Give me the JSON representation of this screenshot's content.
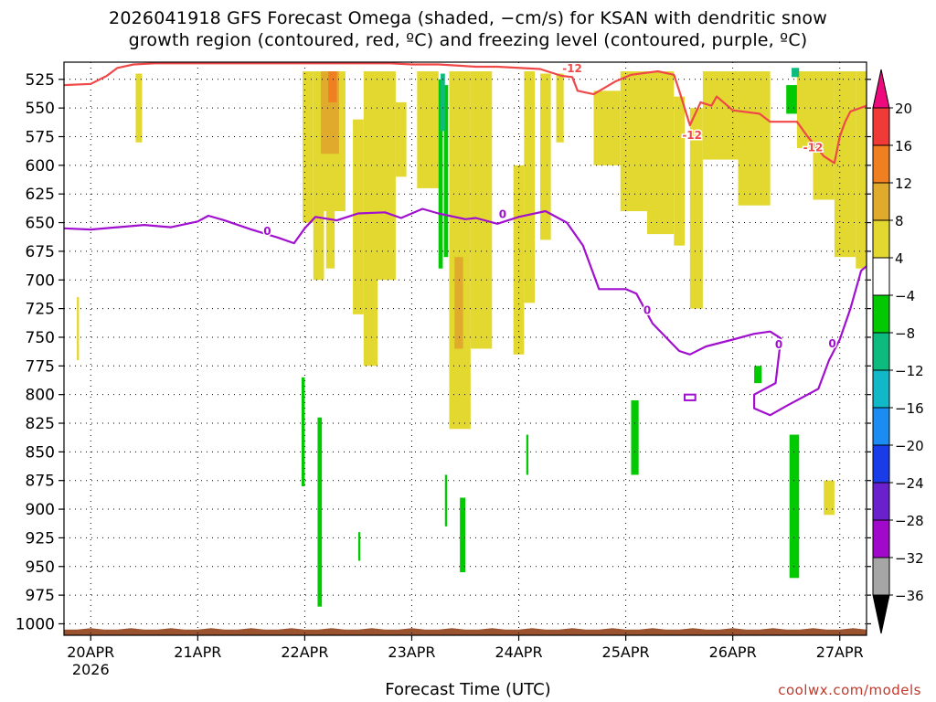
{
  "chart_data": {
    "type": "heatmap",
    "title_line1": "2026041918 GFS Forecast Omega (shaded, −cm/s) for KSAN with dendritic snow",
    "title_line2": "growth region (contoured, red, ºC) and freezing level (contoured, purple, ºC)",
    "xlabel": "Forecast Time (UTC)",
    "credit": "coolwx.com/models",
    "x_ticks": [
      "20APR",
      "21APR",
      "22APR",
      "23APR",
      "24APR",
      "25APR",
      "26APR",
      "27APR"
    ],
    "x_year_label": "2026",
    "x_range_days": [
      -0.25,
      7.25
    ],
    "y_ticks": [
      525,
      550,
      575,
      600,
      625,
      650,
      675,
      700,
      725,
      750,
      775,
      800,
      825,
      850,
      875,
      900,
      925,
      950,
      975,
      1000
    ],
    "y_range_hpa": [
      510,
      1010
    ],
    "y_axis": "pressure (hPa), inverted",
    "grid": "dotted",
    "colorbar_ticks": [
      20,
      16,
      12,
      8,
      4,
      -4,
      -8,
      -12,
      -16,
      -20,
      -24,
      -28,
      -32,
      -36
    ],
    "colorbar_colors": [
      "#ec0a7c",
      "#f03a38",
      "#ef7f20",
      "#e0aa2c",
      "#e3d830",
      "#ffffff",
      "#03c903",
      "#0cbb7d",
      "#10b8c8",
      "#1a8cf2",
      "#1a3ce8",
      "#6a20cc",
      "#a009c9",
      "#a6a6a6",
      "#000000"
    ],
    "contour_labels": {
      "dgz": "-12",
      "freezing": "0"
    },
    "dgz_color": "#f04848",
    "freezing_color": "#a10fcf",
    "ground_color": "#9a532e",
    "freezing_level": [
      [
        -0.25,
        655
      ],
      [
        0,
        656
      ],
      [
        0.25,
        654
      ],
      [
        0.5,
        652
      ],
      [
        0.75,
        654
      ],
      [
        1.0,
        649
      ],
      [
        1.1,
        644
      ],
      [
        1.25,
        648
      ],
      [
        1.5,
        656
      ],
      [
        1.75,
        663
      ],
      [
        1.9,
        668
      ],
      [
        2.0,
        655
      ],
      [
        2.1,
        645
      ],
      [
        2.3,
        648
      ],
      [
        2.5,
        642
      ],
      [
        2.75,
        641
      ],
      [
        2.9,
        646
      ],
      [
        3.1,
        638
      ],
      [
        3.25,
        642
      ],
      [
        3.5,
        647
      ],
      [
        3.6,
        646
      ],
      [
        3.8,
        651
      ],
      [
        4.0,
        645
      ],
      [
        4.25,
        640
      ],
      [
        4.45,
        650
      ],
      [
        4.6,
        670
      ],
      [
        4.75,
        708
      ],
      [
        5.0,
        708
      ],
      [
        5.1,
        712
      ],
      [
        5.25,
        738
      ],
      [
        5.5,
        762
      ],
      [
        5.6,
        765
      ],
      [
        5.75,
        758
      ],
      [
        6.0,
        752
      ],
      [
        6.2,
        747
      ],
      [
        6.35,
        745
      ],
      [
        6.45,
        751
      ],
      [
        6.4,
        790
      ],
      [
        6.2,
        800
      ],
      [
        6.2,
        812
      ],
      [
        6.35,
        818
      ],
      [
        6.5,
        810
      ],
      [
        6.8,
        795
      ],
      [
        6.9,
        770
      ],
      [
        7.0,
        752
      ],
      [
        7.1,
        725
      ],
      [
        7.2,
        692
      ],
      [
        7.25,
        688
      ]
    ],
    "dgz_minus12": [
      [
        -0.25,
        530
      ],
      [
        0,
        529
      ],
      [
        0.15,
        522
      ],
      [
        0.25,
        515
      ],
      [
        0.4,
        512
      ],
      [
        0.6,
        511
      ],
      [
        2.8,
        511
      ],
      [
        3.0,
        512
      ],
      [
        3.25,
        512
      ],
      [
        3.6,
        514
      ],
      [
        3.8,
        514
      ],
      [
        4.2,
        516
      ],
      [
        4.4,
        522
      ],
      [
        4.5,
        523
      ],
      [
        4.55,
        535
      ],
      [
        4.7,
        538
      ],
      [
        4.9,
        527
      ],
      [
        5.05,
        521
      ],
      [
        5.3,
        518
      ],
      [
        5.45,
        521
      ],
      [
        5.5,
        535
      ],
      [
        5.6,
        565
      ],
      [
        5.7,
        545
      ],
      [
        5.8,
        548
      ],
      [
        5.85,
        540
      ],
      [
        6.0,
        552
      ],
      [
        6.25,
        555
      ],
      [
        6.35,
        562
      ],
      [
        6.6,
        562
      ],
      [
        6.7,
        575
      ],
      [
        6.85,
        592
      ],
      [
        6.95,
        598
      ],
      [
        7.0,
        575
      ],
      [
        7.05,
        562
      ],
      [
        7.1,
        553
      ],
      [
        7.25,
        548
      ]
    ],
    "omega_regions": [
      {
        "v": 6,
        "x0": 0.42,
        "x1": 0.48,
        "p0": 520,
        "p1": 580
      },
      {
        "v": 6,
        "x0": -0.13,
        "x1": -0.11,
        "p0": 715,
        "p1": 770
      },
      {
        "v": 6,
        "x0": 1.98,
        "x1": 2.08,
        "p0": 518,
        "p1": 650
      },
      {
        "v": 6,
        "x0": 2.08,
        "x1": 2.18,
        "p0": 518,
        "p1": 700
      },
      {
        "v": 6,
        "x0": 2.18,
        "x1": 2.38,
        "p0": 518,
        "p1": 640
      },
      {
        "v": 6,
        "x0": 2.2,
        "x1": 2.28,
        "p0": 640,
        "p1": 690
      },
      {
        "v": 6,
        "x0": 2.45,
        "x1": 2.55,
        "p0": 560,
        "p1": 730
      },
      {
        "v": 6,
        "x0": 2.55,
        "x1": 2.68,
        "p0": 518,
        "p1": 775
      },
      {
        "v": 6,
        "x0": 2.68,
        "x1": 2.85,
        "p0": 518,
        "p1": 700
      },
      {
        "v": 6,
        "x0": 2.85,
        "x1": 2.95,
        "p0": 545,
        "p1": 610
      },
      {
        "v": 6,
        "x0": 3.05,
        "x1": 3.25,
        "p0": 518,
        "p1": 620
      },
      {
        "v": 6,
        "x0": 3.35,
        "x1": 3.55,
        "p0": 518,
        "p1": 830
      },
      {
        "v": 6,
        "x0": 3.55,
        "x1": 3.75,
        "p0": 518,
        "p1": 760
      },
      {
        "v": 6,
        "x0": 3.95,
        "x1": 4.05,
        "p0": 600,
        "p1": 765
      },
      {
        "v": 6,
        "x0": 4.05,
        "x1": 4.15,
        "p0": 518,
        "p1": 720
      },
      {
        "v": 6,
        "x0": 4.2,
        "x1": 4.3,
        "p0": 520,
        "p1": 665
      },
      {
        "v": 6,
        "x0": 4.35,
        "x1": 4.42,
        "p0": 520,
        "p1": 580
      },
      {
        "v": 6,
        "x0": 4.7,
        "x1": 4.95,
        "p0": 535,
        "p1": 600
      },
      {
        "v": 6,
        "x0": 4.95,
        "x1": 5.2,
        "p0": 518,
        "p1": 640
      },
      {
        "v": 6,
        "x0": 5.2,
        "x1": 5.45,
        "p0": 518,
        "p1": 660
      },
      {
        "v": 6,
        "x0": 5.45,
        "x1": 5.55,
        "p0": 540,
        "p1": 670
      },
      {
        "v": 6,
        "x0": 5.6,
        "x1": 5.72,
        "p0": 550,
        "p1": 725
      },
      {
        "v": 6,
        "x0": 5.72,
        "x1": 6.05,
        "p0": 518,
        "p1": 595
      },
      {
        "v": 6,
        "x0": 6.05,
        "x1": 6.35,
        "p0": 518,
        "p1": 635
      },
      {
        "v": 6,
        "x0": 6.6,
        "x1": 6.75,
        "p0": 518,
        "p1": 585
      },
      {
        "v": 6,
        "x0": 6.75,
        "x1": 6.95,
        "p0": 518,
        "p1": 630
      },
      {
        "v": 6,
        "x0": 6.85,
        "x1": 6.95,
        "p0": 875,
        "p1": 905
      },
      {
        "v": 6,
        "x0": 6.95,
        "x1": 7.15,
        "p0": 518,
        "p1": 680
      },
      {
        "v": 6,
        "x0": 7.15,
        "x1": 7.25,
        "p0": 518,
        "p1": 690
      },
      {
        "v": 10,
        "x0": 2.15,
        "x1": 2.32,
        "p0": 518,
        "p1": 590
      },
      {
        "v": 10,
        "x0": 3.4,
        "x1": 3.48,
        "p0": 680,
        "p1": 760
      },
      {
        "v": 14,
        "x0": 2.22,
        "x1": 2.3,
        "p0": 518,
        "p1": 545
      },
      {
        "v": -6,
        "x0": 1.97,
        "x1": 2.0,
        "p0": 785,
        "p1": 880
      },
      {
        "v": -6,
        "x0": 2.12,
        "x1": 2.16,
        "p0": 820,
        "p1": 985
      },
      {
        "v": -6,
        "x0": 3.25,
        "x1": 3.29,
        "p0": 525,
        "p1": 690
      },
      {
        "v": -6,
        "x0": 3.3,
        "x1": 3.34,
        "p0": 530,
        "p1": 680
      },
      {
        "v": -6,
        "x0": 3.31,
        "x1": 3.33,
        "p0": 870,
        "p1": 915
      },
      {
        "v": -6,
        "x0": 3.45,
        "x1": 3.5,
        "p0": 890,
        "p1": 955
      },
      {
        "v": -6,
        "x0": 2.5,
        "x1": 2.52,
        "p0": 920,
        "p1": 945
      },
      {
        "v": -6,
        "x0": 4.07,
        "x1": 4.09,
        "p0": 835,
        "p1": 870
      },
      {
        "v": -6,
        "x0": 5.05,
        "x1": 5.12,
        "p0": 805,
        "p1": 870
      },
      {
        "v": -6,
        "x0": 6.2,
        "x1": 6.27,
        "p0": 775,
        "p1": 790
      },
      {
        "v": -6,
        "x0": 6.5,
        "x1": 6.6,
        "p0": 530,
        "p1": 555
      },
      {
        "v": -6,
        "x0": 6.53,
        "x1": 6.62,
        "p0": 835,
        "p1": 960
      },
      {
        "v": -10,
        "x0": 3.27,
        "x1": 3.31,
        "p0": 520,
        "p1": 570
      },
      {
        "v": -10,
        "x0": 6.55,
        "x1": 6.62,
        "p0": 515,
        "p1": 523
      }
    ],
    "ground_top_hpa": 1005
  }
}
